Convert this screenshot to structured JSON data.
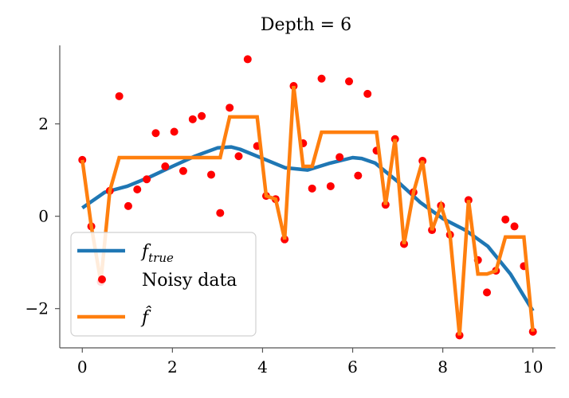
{
  "chart_data": {
    "type": "line",
    "title": "Depth = 6",
    "xlim": [
      -0.5,
      10.5
    ],
    "ylim": [
      -2.85,
      3.7
    ],
    "xticks": [
      0,
      2,
      4,
      6,
      8,
      10
    ],
    "xtick_labels": [
      "0",
      "2",
      "4",
      "6",
      "8",
      "10"
    ],
    "yticks": [
      -2,
      0,
      2
    ],
    "ytick_labels": [
      "−2",
      "0",
      "2"
    ],
    "grid": false,
    "legend": {
      "placement": "lower-left",
      "entries": [
        "f_true",
        "Noisy data",
        "f̂"
      ]
    },
    "colors": {
      "true": "#1f77b4",
      "noisy": "#ff0000",
      "fit": "#ff7f0e"
    },
    "series": [
      {
        "name": "f_true",
        "style": "line",
        "x": [
          0,
          0.5,
          1,
          1.5,
          2,
          2.5,
          3,
          3.3,
          3.5,
          4,
          4.5,
          5,
          5.5,
          6,
          6.2,
          6.5,
          7,
          7.5,
          8,
          8.5,
          9,
          9.5,
          10
        ],
        "y": [
          0.18,
          0.52,
          0.65,
          0.85,
          1.08,
          1.3,
          1.48,
          1.5,
          1.45,
          1.25,
          1.05,
          1.0,
          1.15,
          1.27,
          1.25,
          1.15,
          0.75,
          0.3,
          -0.05,
          -0.3,
          -0.65,
          -1.25,
          -2.05
        ]
      },
      {
        "name": "Noisy data",
        "style": "scatter",
        "x": [
          0,
          0.2,
          0.41,
          0.61,
          0.82,
          1.02,
          1.22,
          1.43,
          1.63,
          1.84,
          2.04,
          2.24,
          2.45,
          2.65,
          2.86,
          3.06,
          3.27,
          3.47,
          3.67,
          3.88,
          4.08,
          4.29,
          4.49,
          4.69,
          4.9,
          5.1,
          5.31,
          5.51,
          5.71,
          5.92,
          6.12,
          6.33,
          6.53,
          6.73,
          6.94,
          7.14,
          7.35,
          7.55,
          7.76,
          7.96,
          8.16,
          8.37,
          8.57,
          8.78,
          8.98,
          9.18,
          9.39,
          9.59,
          9.8,
          10
        ],
        "y": [
          1.22,
          -0.22,
          -1.42,
          0.55,
          2.6,
          0.22,
          0.58,
          0.8,
          1.8,
          1.08,
          1.83,
          0.98,
          2.1,
          2.17,
          0.9,
          0.07,
          2.35,
          1.3,
          3.4,
          1.52,
          0.44,
          0.37,
          -0.5,
          2.82,
          1.58,
          0.6,
          2.98,
          0.65,
          1.28,
          2.92,
          0.88,
          2.65,
          1.42,
          0.25,
          1.67,
          -0.6,
          0.52,
          1.2,
          -0.3,
          0.23,
          -0.4,
          -2.58,
          0.35,
          -0.95,
          -1.65,
          -1.18,
          -0.07,
          -0.22,
          -1.08,
          -2.5
        ]
      },
      {
        "name": "f̂",
        "style": "line",
        "x": [
          0,
          0.2,
          0.41,
          0.61,
          0.82,
          1.02,
          1.22,
          1.43,
          1.63,
          1.84,
          2.04,
          2.24,
          2.45,
          2.65,
          2.86,
          3.06,
          3.27,
          3.47,
          3.67,
          3.88,
          4.08,
          4.29,
          4.49,
          4.69,
          4.9,
          5.1,
          5.31,
          5.51,
          5.71,
          5.92,
          6.12,
          6.33,
          6.53,
          6.73,
          6.94,
          7.14,
          7.35,
          7.55,
          7.76,
          7.96,
          8.16,
          8.37,
          8.57,
          8.78,
          8.98,
          9.18,
          9.39,
          9.59,
          9.8,
          10
        ],
        "y": [
          1.22,
          -0.22,
          -1.42,
          0.55,
          1.27,
          1.27,
          1.27,
          1.27,
          1.27,
          1.27,
          1.27,
          1.27,
          1.27,
          1.27,
          1.27,
          1.27,
          2.15,
          2.15,
          2.15,
          2.15,
          0.44,
          0.37,
          -0.5,
          2.82,
          1.08,
          1.08,
          1.82,
          1.82,
          1.82,
          1.82,
          1.82,
          1.82,
          1.82,
          0.25,
          1.67,
          -0.6,
          0.52,
          1.2,
          -0.3,
          0.23,
          -0.4,
          -2.58,
          0.35,
          -1.25,
          -1.25,
          -1.18,
          -0.45,
          -0.45,
          -0.45,
          -2.5
        ]
      }
    ]
  }
}
